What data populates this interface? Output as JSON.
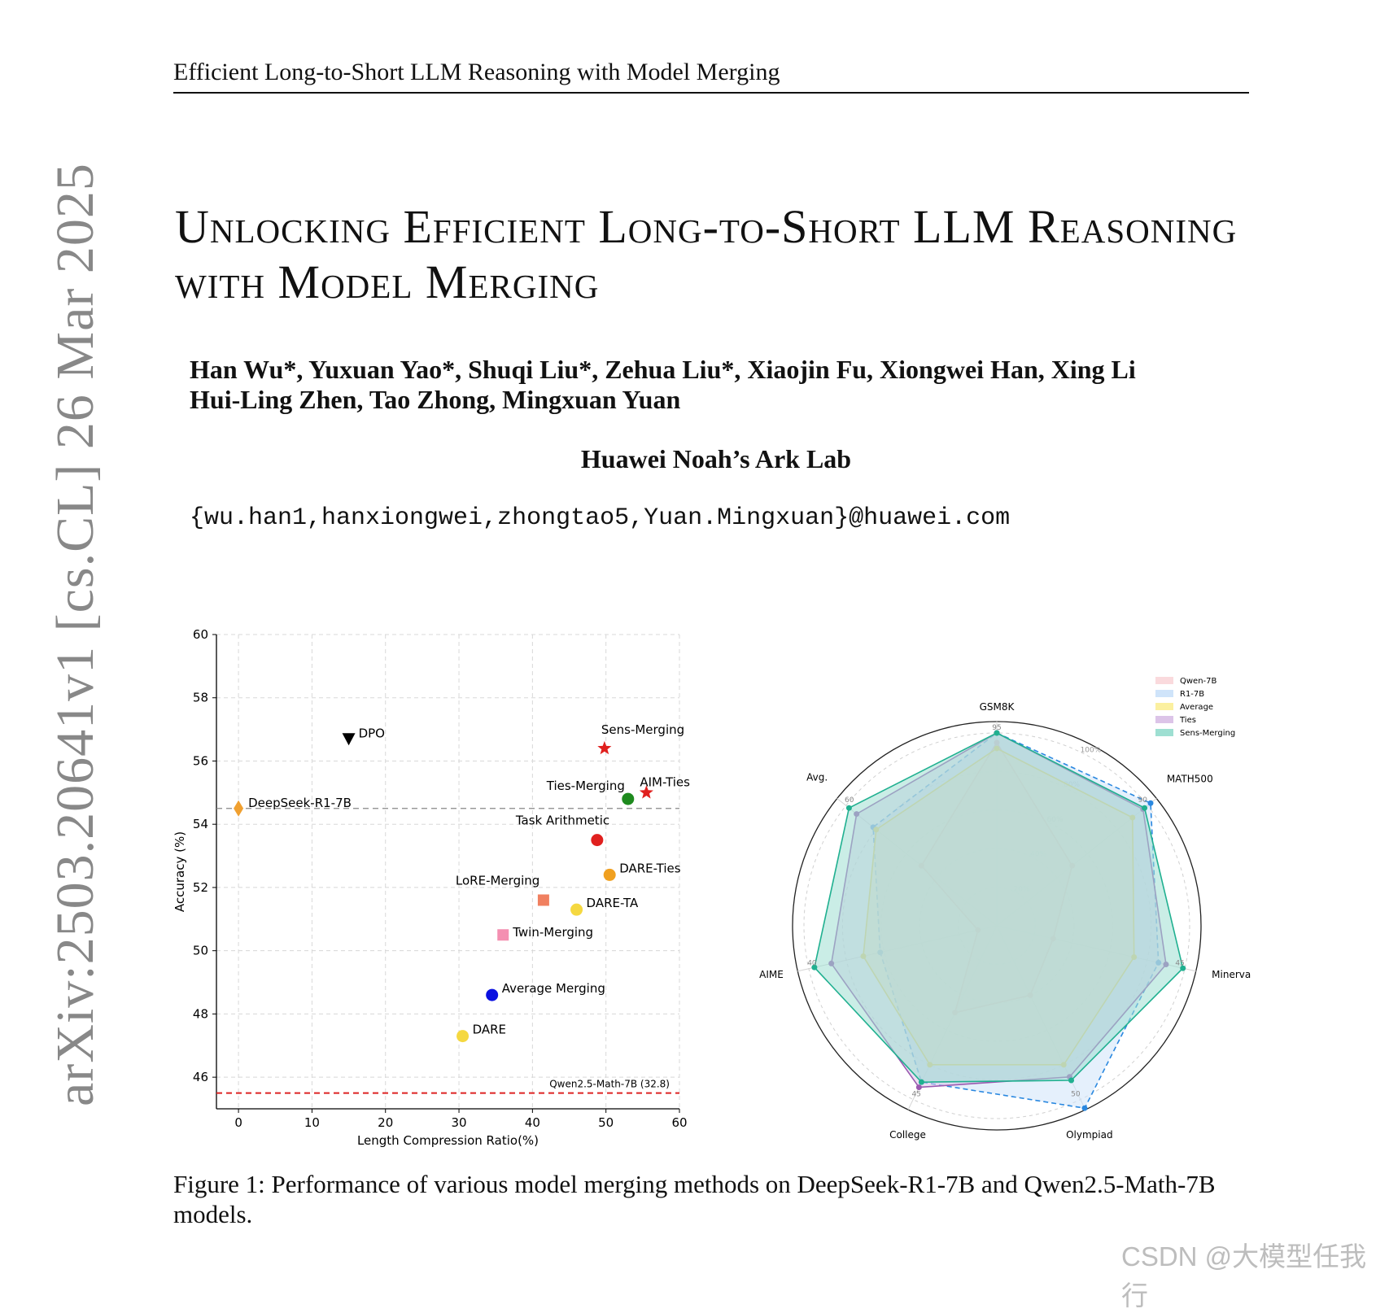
{
  "running_head": "Efficient Long-to-Short LLM Reasoning with Model Merging",
  "arxiv_id": "arXiv:2503.20641v1  [cs.CL]  26 Mar 2025",
  "title": "Unlocking Efficient Long-to-Short LLM Reasoning with Model Merging",
  "authors_line1": "Han Wu*, Yuxuan Yao*, Shuqi Liu*, Zehua Liu*, Xiaojin Fu, Xiongwei Han, Xing Li",
  "authors_line2": "Hui-Ling Zhen, Tao Zhong, Mingxuan Yuan",
  "affiliation": "Huawei Noah’s Ark Lab",
  "emails": "{wu.han1,hanxiongwei,zhongtao5,Yuan.Mingxuan}@huawei.com",
  "caption": "Figure 1: Performance of various model merging methods on DeepSeek-R1-7B and Qwen2.5-Math-7B models.",
  "watermark": "CSDN @大模型任我行",
  "chart_data": [
    {
      "type": "scatter",
      "xlabel": "Length Compression Ratio(%)",
      "ylabel": "Accuracy (%)",
      "xlim": [
        -3,
        60
      ],
      "ylim": [
        45,
        60
      ],
      "xticks": [
        0,
        10,
        20,
        30,
        40,
        50,
        60
      ],
      "yticks": [
        46,
        48,
        50,
        52,
        54,
        56,
        58,
        60
      ],
      "grid": true,
      "points": [
        {
          "label": "DeepSeek-R1-7B",
          "x": 0,
          "y": 54.5,
          "marker": "diamond",
          "color": "#f0a030"
        },
        {
          "label": "DPO",
          "x": 15,
          "y": 56.7,
          "marker": "triangle-down",
          "color": "#000000"
        },
        {
          "label": "Sens-Merging",
          "x": 49.8,
          "y": 56.4,
          "marker": "star",
          "color": "#e0201e"
        },
        {
          "label": "AIM-Ties",
          "x": 55.5,
          "y": 55.0,
          "marker": "star",
          "color": "#e0201e"
        },
        {
          "label": "Ties-Merging",
          "x": 53.0,
          "y": 54.8,
          "marker": "circle",
          "color": "#1e8a1e"
        },
        {
          "label": "Task Arithmetic",
          "x": 48.8,
          "y": 53.5,
          "marker": "circle",
          "color": "#e0201e"
        },
        {
          "label": "DARE-Ties",
          "x": 50.5,
          "y": 52.4,
          "marker": "circle",
          "color": "#f0a020"
        },
        {
          "label": "LoRE-Merging",
          "x": 41.5,
          "y": 51.6,
          "marker": "square",
          "color": "#f08060"
        },
        {
          "label": "DARE-TA",
          "x": 46.0,
          "y": 51.3,
          "marker": "circle",
          "color": "#f5d840"
        },
        {
          "label": "Twin-Merging",
          "x": 36.0,
          "y": 50.5,
          "marker": "square",
          "color": "#f48fb1"
        },
        {
          "label": "Average Merging",
          "x": 34.5,
          "y": 48.6,
          "marker": "circle",
          "color": "#0a10e0"
        },
        {
          "label": "DARE",
          "x": 30.5,
          "y": 47.3,
          "marker": "circle",
          "color": "#f5d840"
        }
      ],
      "reference_lines": [
        {
          "y": 54.5,
          "style": "dashed",
          "color": "#888888",
          "label": ""
        },
        {
          "y": 45.5,
          "style": "dashed",
          "color": "#dd2222",
          "label": "Qwen2.5-Math-7B (32.8)"
        }
      ]
    },
    {
      "type": "radar",
      "axes": [
        "GSM8K",
        "MATH500",
        "Minerva",
        "Olympiad",
        "College",
        "AIME",
        "Avg."
      ],
      "axis_tick_labels": [
        "95",
        "90",
        "45",
        "50",
        "45",
        "40",
        "60"
      ],
      "radial_ticks": [
        "20%",
        "40%",
        "60%",
        "80%",
        "100%"
      ],
      "legend_position": "top-right",
      "series": [
        {
          "name": "Qwen-7B",
          "color": "#f07070",
          "fill": "#fadadd",
          "values": [
            0.95,
            0.5,
            0.3,
            0.4,
            0.5,
            0.1,
            0.5
          ]
        },
        {
          "name": "R1-7B",
          "color": "#2a88e0",
          "fill": "#cfe4fa",
          "values": [
            1.0,
            1.02,
            0.86,
            1.05,
            0.9,
            0.62,
            0.82
          ]
        },
        {
          "name": "Average",
          "color": "#f0d020",
          "fill": "#fbf0a0",
          "values": [
            0.92,
            0.9,
            0.73,
            0.8,
            0.8,
            0.71,
            0.8
          ]
        },
        {
          "name": "Ties",
          "color": "#9a5ab0",
          "fill": "#dcc4e8",
          "values": [
            1.0,
            0.97,
            0.9,
            0.87,
            0.93,
            0.88,
            0.93
          ]
        },
        {
          "name": "Sens-Merging",
          "color": "#20b090",
          "fill": "#9edfd2",
          "values": [
            1.0,
            0.98,
            0.99,
            0.89,
            0.9,
            0.97,
            0.98
          ]
        }
      ]
    }
  ]
}
